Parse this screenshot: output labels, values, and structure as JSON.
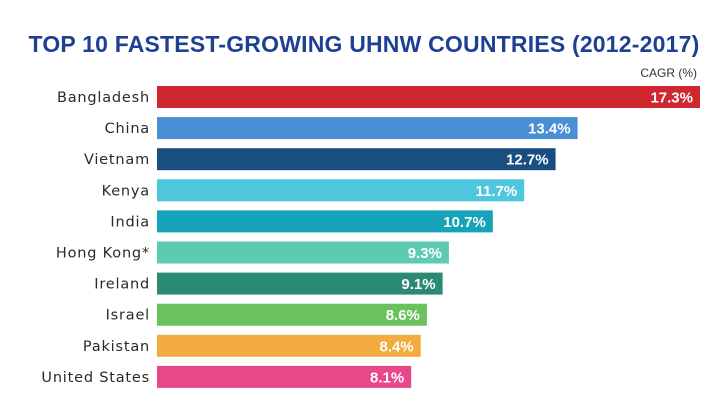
{
  "chart_data": {
    "type": "bar",
    "orientation": "horizontal",
    "title": "TOP 10 FASTEST-GROWING UHNW COUNTRIES (2012-2017)",
    "unit_label": "CAGR (%)",
    "categories": [
      "Bangladesh",
      "China",
      "Vietnam",
      "Kenya",
      "India",
      "Hong Kong*",
      "Ireland",
      "Israel",
      "Pakistan",
      "United States"
    ],
    "values": [
      17.3,
      13.4,
      12.7,
      11.7,
      10.7,
      9.3,
      9.1,
      8.6,
      8.4,
      8.1
    ],
    "value_labels": [
      "17.3%",
      "13.4%",
      "12.7%",
      "11.7%",
      "10.7%",
      "9.3%",
      "9.1%",
      "8.6%",
      "8.4%",
      "8.1%"
    ],
    "colors": [
      "#cf2630",
      "#4a8fd3",
      "#1a4e80",
      "#4ec6dd",
      "#14a3b8",
      "#5ccbb2",
      "#2a8a73",
      "#69c25b",
      "#f3aa3e",
      "#e8488a"
    ],
    "xlim": [
      0,
      17.3
    ],
    "grid": false,
    "legend": "none"
  }
}
